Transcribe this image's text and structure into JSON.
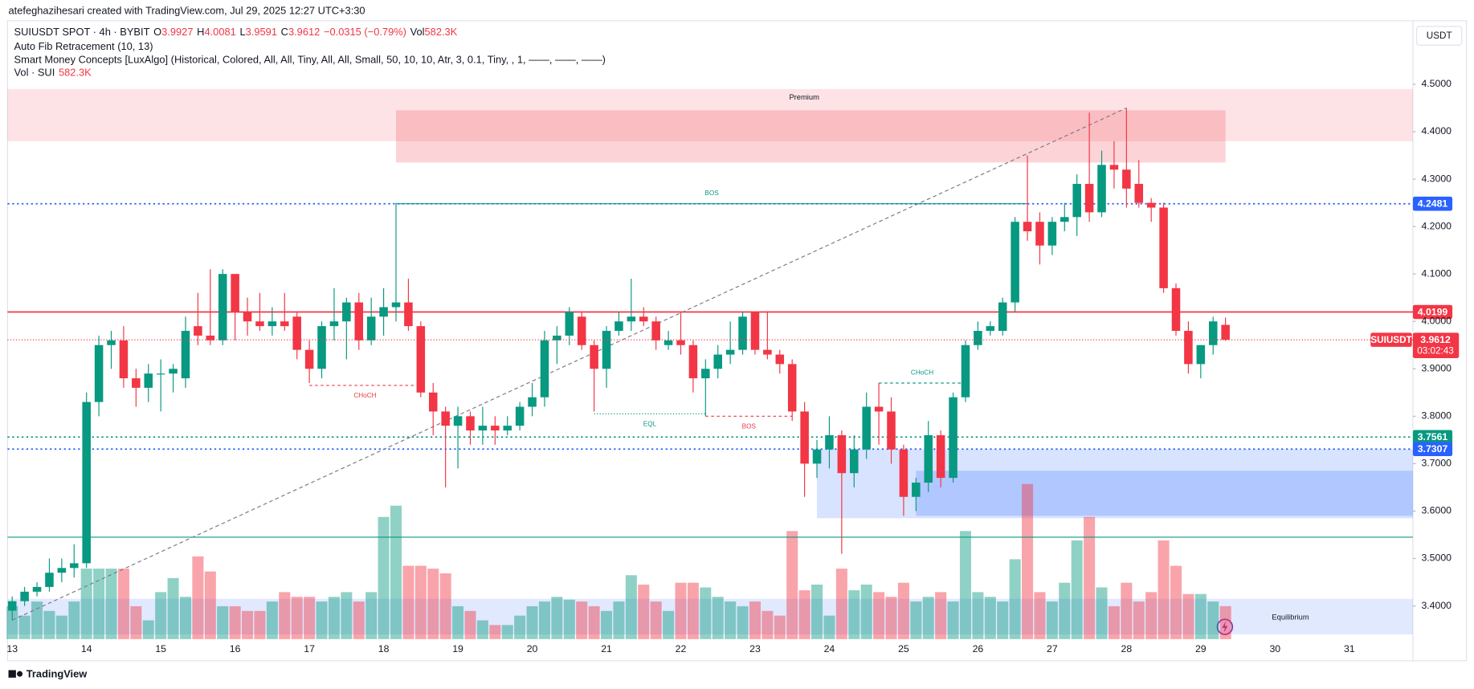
{
  "chart_data": {
    "type": "candlestick",
    "header": "atefeghazihesari created with TradingView.com, Jul 29, 2025 12:27 UTC+3:30",
    "title": "SUIUSDT SPOT · 4h · BYBIT",
    "legend_ohlc": [
      {
        "label": "O",
        "value": 3.9927
      },
      {
        "label": "H",
        "value": 4.0081
      },
      {
        "label": "L",
        "value": 3.9591
      },
      {
        "label": "C",
        "value": 3.9612
      }
    ],
    "legend_change": "−0.0315 (−0.79%)",
    "legend_vol_label": "Vol",
    "legend_vol_value": "582.3K",
    "indicators": [
      "Auto Fib Retracement (10, 13)",
      "Smart Money Concepts [LuxAlgo] (Historical, Colored, All, All, Tiny, All, All, Small, 50, 10, 10, Atr, 3, 0.1, Tiny, , 1, ——, ——, ——)"
    ],
    "volume_title": "Vol · SUI",
    "volume_value": "582.3K",
    "currency": "USDT",
    "footer": "TradingView",
    "up_color": "#089981",
    "down_color": "#f23645",
    "ylim": [
      3.33,
      4.63
    ],
    "yticks": [
      {
        "value": 4.5,
        "label": "4.5000"
      },
      {
        "value": 4.4,
        "label": "4.4000"
      },
      {
        "value": 4.3,
        "label": "4.3000"
      },
      {
        "value": 4.2,
        "label": "4.2000"
      },
      {
        "value": 4.1,
        "label": "4.1000"
      },
      {
        "value": 4,
        "label": "4.0000"
      },
      {
        "value": 3.9,
        "label": "3.9000"
      },
      {
        "value": 3.8,
        "label": "3.8000"
      },
      {
        "value": 3.7,
        "label": "3.7000"
      },
      {
        "value": 3.6,
        "label": "3.6000"
      },
      {
        "value": 3.5,
        "label": "3.5000"
      },
      {
        "value": 3.4,
        "label": "3.4000"
      }
    ],
    "xticks": [
      13,
      14,
      15,
      16,
      17,
      18,
      19,
      20,
      21,
      22,
      23,
      24,
      25,
      26,
      27,
      28,
      29,
      30,
      31
    ],
    "grid": false,
    "ohlc": [
      [
        3.39,
        3.42,
        3.37,
        3.41
      ],
      [
        3.41,
        3.44,
        3.4,
        3.43
      ],
      [
        3.43,
        3.45,
        3.42,
        3.44
      ],
      [
        3.44,
        3.5,
        3.43,
        3.47
      ],
      [
        3.47,
        3.5,
        3.45,
        3.48
      ],
      [
        3.48,
        3.53,
        3.46,
        3.49
      ],
      [
        3.49,
        3.85,
        3.48,
        3.83
      ],
      [
        3.83,
        3.97,
        3.8,
        3.95
      ],
      [
        3.95,
        3.98,
        3.9,
        3.96
      ],
      [
        3.96,
        3.99,
        3.86,
        3.88
      ],
      [
        3.88,
        3.9,
        3.82,
        3.86
      ],
      [
        3.86,
        3.91,
        3.83,
        3.89
      ],
      [
        3.89,
        3.92,
        3.81,
        3.89
      ],
      [
        3.89,
        3.91,
        3.85,
        3.9
      ],
      [
        3.88,
        4.01,
        3.86,
        3.98
      ],
      [
        3.99,
        4.06,
        3.95,
        3.97
      ],
      [
        3.97,
        4.11,
        3.95,
        3.96
      ],
      [
        3.96,
        4.11,
        3.95,
        4.1
      ],
      [
        4.1,
        4.1,
        3.96,
        4.02
      ],
      [
        4.02,
        4.05,
        3.97,
        4.0
      ],
      [
        4.0,
        4.06,
        3.98,
        3.99
      ],
      [
        3.99,
        4.03,
        3.97,
        4.0
      ],
      [
        4.0,
        4.06,
        3.98,
        3.99
      ],
      [
        4.01,
        4.02,
        3.92,
        3.94
      ],
      [
        3.94,
        3.96,
        3.87,
        3.9
      ],
      [
        3.9,
        4.0,
        3.88,
        3.99
      ],
      [
        3.99,
        4.07,
        3.96,
        4.0
      ],
      [
        4.0,
        4.05,
        3.92,
        4.04
      ],
      [
        4.04,
        4.06,
        3.94,
        3.96
      ],
      [
        3.96,
        4.05,
        3.95,
        4.01
      ],
      [
        4.01,
        4.07,
        3.97,
        4.03
      ],
      [
        4.03,
        4.25,
        4.0,
        4.04
      ],
      [
        4.04,
        4.09,
        3.98,
        3.99
      ],
      [
        3.99,
        4.0,
        3.84,
        3.85
      ],
      [
        3.85,
        3.87,
        3.76,
        3.81
      ],
      [
        3.81,
        3.82,
        3.65,
        3.78
      ],
      [
        3.78,
        3.82,
        3.69,
        3.8
      ],
      [
        3.8,
        3.81,
        3.74,
        3.77
      ],
      [
        3.77,
        3.82,
        3.74,
        3.78
      ],
      [
        3.78,
        3.8,
        3.74,
        3.77
      ],
      [
        3.77,
        3.8,
        3.76,
        3.78
      ],
      [
        3.78,
        3.83,
        3.77,
        3.82
      ],
      [
        3.82,
        3.87,
        3.8,
        3.84
      ],
      [
        3.84,
        3.98,
        3.82,
        3.96
      ],
      [
        3.96,
        3.99,
        3.91,
        3.97
      ],
      [
        3.97,
        4.03,
        3.95,
        4.02
      ],
      [
        4.01,
        4.02,
        3.94,
        3.95
      ],
      [
        3.95,
        3.96,
        3.81,
        3.9
      ],
      [
        3.9,
        3.99,
        3.86,
        3.98
      ],
      [
        3.98,
        4.02,
        3.97,
        4.0
      ],
      [
        4.0,
        4.09,
        3.98,
        4.01
      ],
      [
        4.01,
        4.03,
        3.99,
        4.0
      ],
      [
        4.0,
        4.01,
        3.94,
        3.96
      ],
      [
        3.95,
        3.98,
        3.94,
        3.96
      ],
      [
        3.96,
        4.02,
        3.93,
        3.95
      ],
      [
        3.95,
        3.96,
        3.85,
        3.88
      ],
      [
        3.88,
        3.92,
        3.8,
        3.9
      ],
      [
        3.9,
        3.95,
        3.88,
        3.93
      ],
      [
        3.93,
        4.0,
        3.91,
        3.94
      ],
      [
        3.94,
        4.02,
        3.93,
        4.01
      ],
      [
        4.02,
        4.02,
        3.93,
        3.94
      ],
      [
        3.94,
        4.02,
        3.92,
        3.93
      ],
      [
        3.93,
        3.94,
        3.89,
        3.91
      ],
      [
        3.91,
        3.92,
        3.79,
        3.81
      ],
      [
        3.81,
        3.83,
        3.63,
        3.7
      ],
      [
        3.7,
        3.75,
        3.67,
        3.73
      ],
      [
        3.73,
        3.8,
        3.69,
        3.76
      ],
      [
        3.76,
        3.77,
        3.51,
        3.68
      ],
      [
        3.68,
        3.76,
        3.65,
        3.73
      ],
      [
        3.73,
        3.85,
        3.71,
        3.82
      ],
      [
        3.82,
        3.87,
        3.74,
        3.81
      ],
      [
        3.81,
        3.84,
        3.7,
        3.73
      ],
      [
        3.73,
        3.74,
        3.59,
        3.63
      ],
      [
        3.63,
        3.67,
        3.6,
        3.66
      ],
      [
        3.66,
        3.79,
        3.64,
        3.76
      ],
      [
        3.76,
        3.77,
        3.65,
        3.67
      ],
      [
        3.67,
        3.85,
        3.66,
        3.84
      ],
      [
        3.84,
        3.96,
        3.83,
        3.95
      ],
      [
        3.95,
        4.0,
        3.94,
        3.98
      ],
      [
        3.98,
        4.0,
        3.97,
        3.99
      ],
      [
        3.98,
        4.05,
        3.97,
        4.04
      ],
      [
        4.04,
        4.22,
        4.02,
        4.21
      ],
      [
        4.21,
        4.35,
        4.17,
        4.19
      ],
      [
        4.21,
        4.23,
        4.12,
        4.16
      ],
      [
        4.16,
        4.22,
        4.14,
        4.21
      ],
      [
        4.21,
        4.25,
        4.19,
        4.22
      ],
      [
        4.22,
        4.31,
        4.18,
        4.29
      ],
      [
        4.29,
        4.44,
        4.21,
        4.23
      ],
      [
        4.23,
        4.36,
        4.22,
        4.33
      ],
      [
        4.33,
        4.38,
        4.28,
        4.32
      ],
      [
        4.32,
        4.45,
        4.24,
        4.28
      ],
      [
        4.29,
        4.34,
        4.24,
        4.25
      ],
      [
        4.25,
        4.26,
        4.21,
        4.24
      ],
      [
        4.24,
        4.25,
        4.06,
        4.07
      ],
      [
        4.07,
        4.08,
        3.97,
        3.98
      ],
      [
        3.98,
        4.0,
        3.89,
        3.91
      ],
      [
        3.91,
        3.95,
        3.88,
        3.95
      ],
      [
        3.95,
        4.01,
        3.93,
        4.0
      ],
      [
        3.9927,
        4.0081,
        3.9591,
        3.9612
      ]
    ],
    "volume": [
      581,
      415,
      664,
      498,
      415,
      664,
      1245,
      1245,
      1245,
      1245,
      581,
      332,
      830,
      1079,
      747,
      1461,
      1195,
      581,
      581,
      498,
      498,
      664,
      830,
      747,
      747,
      664,
      747,
      830,
      664,
      830,
      2158,
      2357,
      1295,
      1295,
      1245,
      1162,
      581,
      498,
      332,
      249,
      249,
      415,
      581,
      664,
      747,
      697,
      664,
      581,
      498,
      664,
      1129,
      963,
      664,
      498,
      996,
      996,
      913,
      747,
      664,
      581,
      664,
      498,
      415,
      1909,
      863,
      963,
      415,
      1245,
      863,
      963,
      830,
      747,
      996,
      664,
      747,
      830,
      664,
      1909,
      830,
      747,
      664,
      1411,
      2739,
      830,
      664,
      996,
      1743,
      2158,
      913,
      581,
      996,
      664,
      830,
      1743,
      1295,
      797,
      797,
      664,
      582.3
    ],
    "zones": [
      {
        "top": 4.49,
        "bottom": 4.38,
        "from": null,
        "to": null,
        "color": "#f23645",
        "opacity": 0.14,
        "label": "Premium",
        "label_align": "center-top",
        "label_color": "#f23645"
      },
      {
        "top": 4.445,
        "bottom": 4.335,
        "from": 31,
        "to": 98,
        "color": "#f23645",
        "opacity": 0.22
      },
      {
        "top": 3.73,
        "bottom": 3.585,
        "from": 65,
        "to": null,
        "color": "#2962ff",
        "opacity": 0.18
      },
      {
        "top": 3.685,
        "bottom": 3.59,
        "from": 73,
        "to": null,
        "color": "#2962ff",
        "opacity": 0.22
      },
      {
        "top": 3.415,
        "bottom": 3.34,
        "from": null,
        "to": null,
        "color": "#2962ff",
        "opacity": 0.14,
        "label": "Equilibrium",
        "label_align": "right-bottom",
        "label_color": "#9598a1"
      }
    ],
    "levels": [
      {
        "value": 4.2481,
        "color": "#2962ff",
        "dash": "2,3"
      },
      {
        "value": 4.0199,
        "color": "#f23645",
        "dash": "none"
      },
      {
        "value": 3.7561,
        "color": "#089981",
        "dash": "2,3"
      },
      {
        "value": 3.7307,
        "color": "#2962ff",
        "dash": "2,3"
      }
    ],
    "lines": [
      {
        "value": 3.545,
        "color": "#089981"
      }
    ],
    "last_price": {
      "name": "SUIUSDT",
      "value": 3.9612,
      "countdown": "03:02:43",
      "color": "#f23645"
    },
    "fib_line": {
      "from": 0,
      "to": 90
    },
    "structures": [
      {
        "label": "BOS",
        "price": 4.2481,
        "from": 31,
        "to": 82,
        "color": "#089981",
        "dash": "none",
        "side": "above"
      },
      {
        "label": "CHoCH",
        "price": 3.865,
        "from": 24,
        "to": 33,
        "color": "#f23645",
        "dash": "3,3",
        "side": "below"
      },
      {
        "label": "EQL",
        "price": 3.805,
        "from": 47,
        "to": 56,
        "color": "#089981",
        "dash": "1,2",
        "side": "below"
      },
      {
        "label": "BOS",
        "price": 3.8,
        "from": 56,
        "to": 63,
        "color": "#f23645",
        "dash": "3,3",
        "side": "below"
      },
      {
        "label": "CHoCH",
        "price": 3.87,
        "from": 70,
        "to": 77,
        "color": "#089981",
        "dash": "3,3",
        "side": "above"
      }
    ]
  }
}
